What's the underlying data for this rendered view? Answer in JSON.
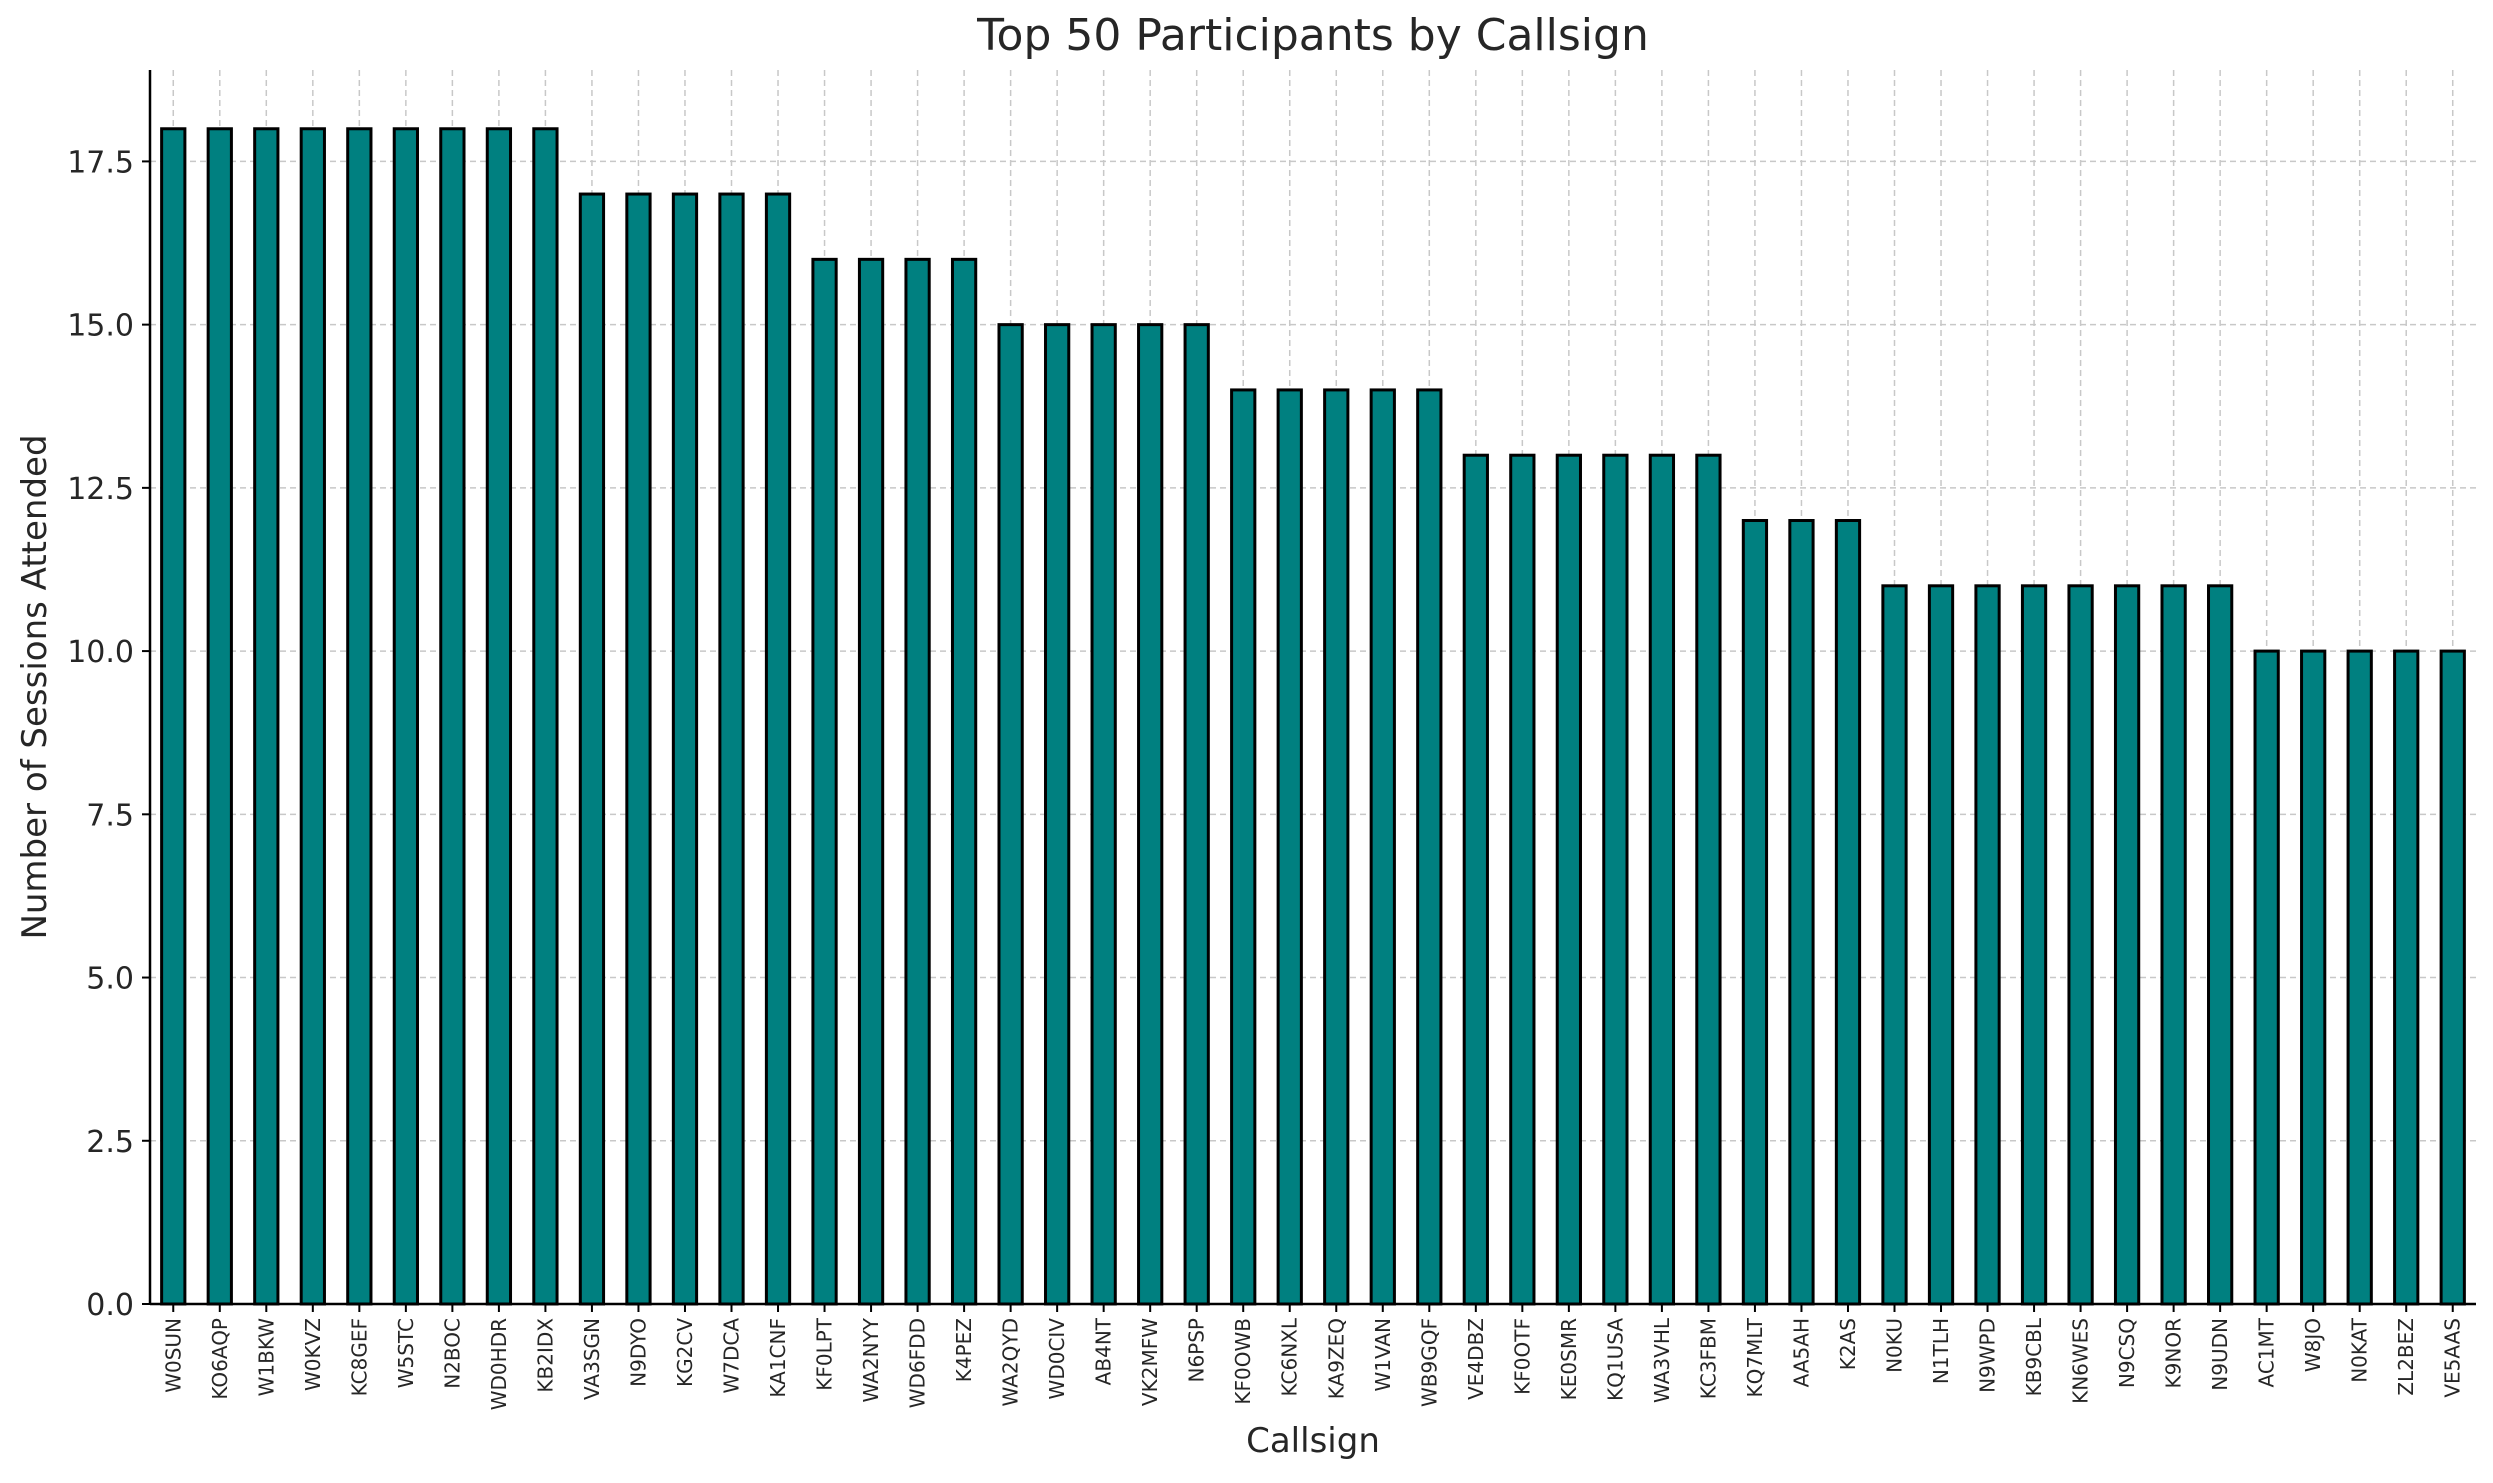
{
  "chart_data": {
    "type": "bar",
    "title": "Top 50 Participants by Callsign",
    "xlabel": "Callsign",
    "ylabel": "Number of Sessions Attended",
    "ylim": [
      0,
      18.9
    ],
    "yticks": [
      "0.0",
      "2.5",
      "5.0",
      "7.5",
      "10.0",
      "12.5",
      "15.0",
      "17.5"
    ],
    "ytick_values": [
      0,
      2.5,
      5,
      7.5,
      10,
      12.5,
      15,
      17.5
    ],
    "grid": true,
    "bar_color": "#008080",
    "bar_edge_color": "#000000",
    "categories": [
      "W0SUN",
      "KO6AQP",
      "W1BKW",
      "W0KVZ",
      "KC8GEF",
      "W5STC",
      "N2BOC",
      "WD0HDR",
      "KB2IDX",
      "VA3SGN",
      "N9DYO",
      "KG2CV",
      "W7DCA",
      "KA1CNF",
      "KF0LPT",
      "WA2NYY",
      "WD6FDD",
      "K4PEZ",
      "WA2QYD",
      "WD0CIV",
      "AB4NT",
      "VK2MFW",
      "N6PSP",
      "KF0OWB",
      "KC6NXL",
      "KA9ZEQ",
      "W1VAN",
      "WB9GQF",
      "VE4DBZ",
      "KF0OTF",
      "KE0SMR",
      "KQ1USA",
      "WA3VHL",
      "KC3FBM",
      "KQ7MLT",
      "AA5AH",
      "K2AS",
      "N0KU",
      "N1TLH",
      "N9WPD",
      "KB9CBL",
      "KN6WES",
      "N9CSQ",
      "K9NOR",
      "N9UDN",
      "AC1MT",
      "W8JO",
      "N0KAT",
      "ZL2BEZ",
      "VE5AAS"
    ],
    "values": [
      18,
      18,
      18,
      18,
      18,
      18,
      18,
      18,
      18,
      17,
      17,
      17,
      17,
      17,
      16,
      16,
      16,
      16,
      15,
      15,
      15,
      15,
      15,
      14,
      14,
      14,
      14,
      14,
      13,
      13,
      13,
      13,
      13,
      13,
      12,
      12,
      12,
      11,
      11,
      11,
      11,
      11,
      11,
      11,
      11,
      10,
      10,
      10,
      10,
      10
    ]
  }
}
